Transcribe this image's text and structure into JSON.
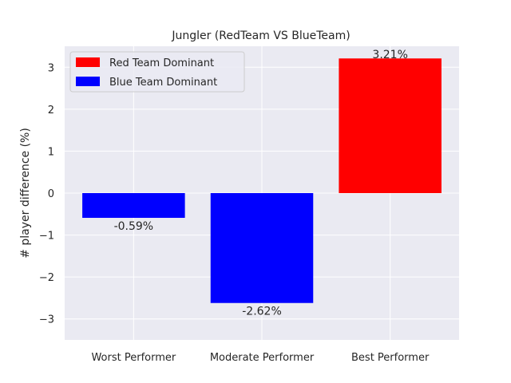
{
  "chart_data": {
    "type": "bar",
    "title": "Jungler (RedTeam VS BlueTeam)",
    "xlabel": "",
    "ylabel": "# player difference (%)",
    "categories": [
      "Worst Performer",
      "Moderate Performer",
      "Best Performer"
    ],
    "values": [
      -0.59,
      -2.62,
      3.21
    ],
    "data_labels": [
      "-0.59%",
      "-2.62%",
      "3.21%"
    ],
    "bar_colors": [
      "#0000ff",
      "#0000ff",
      "#ff0000"
    ],
    "ylim": [
      -3.5,
      3.5
    ],
    "yticks": [
      -3,
      -2,
      -1,
      0,
      1,
      2,
      3
    ],
    "ytick_labels": [
      "−3",
      "−2",
      "−1",
      "0",
      "1",
      "2",
      "3"
    ],
    "grid": true,
    "legend_position": "top-left",
    "legend": [
      {
        "label": "Red Team Dominant",
        "color": "#ff0000"
      },
      {
        "label": "Blue Team Dominant",
        "color": "#0000ff"
      }
    ],
    "plot_background": "#eaeaf2"
  }
}
